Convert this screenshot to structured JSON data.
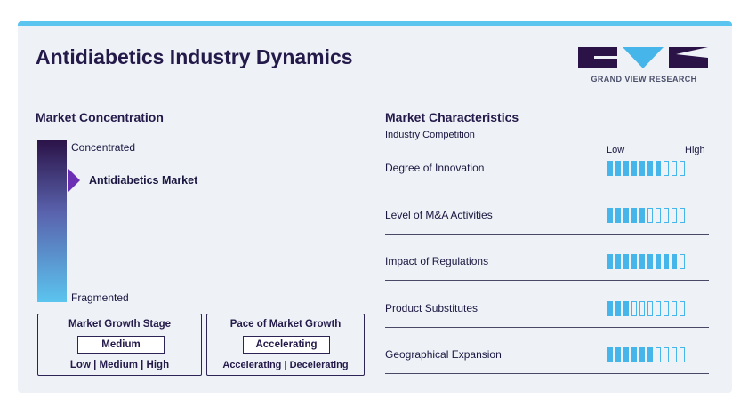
{
  "header": {
    "title": "Antidiabetics Industry Dynamics",
    "logo_text": "GRAND VIEW RESEARCH",
    "logo_icon": "grand-view-research-logo"
  },
  "concentration": {
    "title": "Market Concentration",
    "top_label": "Concentrated",
    "bottom_label": "Fragmented",
    "marker_label": "Antidiabetics Market",
    "colors": {
      "top": "#2b1348",
      "bottom": "#5bc4ef",
      "marker": "#6b2fb3"
    }
  },
  "growth_stage": {
    "title": "Market Growth Stage",
    "value": "Medium",
    "options": "Low | Medium | High"
  },
  "growth_pace": {
    "title": "Pace of Market Growth",
    "value": "Accelerating",
    "options": "Accelerating | Decelerating"
  },
  "characteristics": {
    "title": "Market Characteristics",
    "subtitle": "Industry Competition",
    "low_label": "Low",
    "high_label": "High",
    "bar_total": 10,
    "bar_color": "#46b6ea",
    "items": [
      {
        "label": "Degree of Innovation",
        "filled": 7
      },
      {
        "label": "Level of M&A Activities",
        "filled": 5
      },
      {
        "label": "Impact of Regulations",
        "filled": 9
      },
      {
        "label": "Product Substitutes",
        "filled": 3
      },
      {
        "label": "Geographical Expansion",
        "filled": 6
      }
    ]
  }
}
